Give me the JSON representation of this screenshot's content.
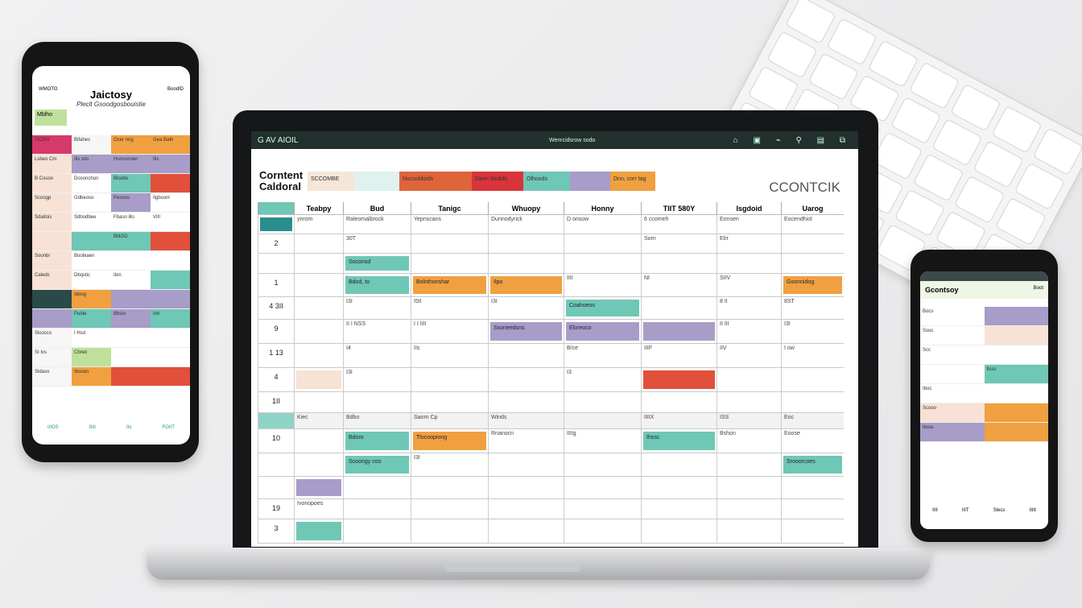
{
  "colors": {
    "teal": "#6fc7b5",
    "orange": "#f0a040",
    "red": "#e0503a",
    "purple": "#a89cc8",
    "peach": "#f7e2d5",
    "green": "#bfe09a",
    "pink": "#d63a6a",
    "grey": "#e8e8e8",
    "dark": "#22302e"
  },
  "laptop": {
    "app_title": "G AV AIOIL",
    "topbar_center": "Wenrcidsrow  sodo",
    "topbar_icons": "⌂ ▣ ⌁ ⚲ ▤ ⧉",
    "title_line1": "Corntent",
    "title_line2": "Caldoral",
    "brand": "CCONTCIK",
    "legend": [
      {
        "label": "SCCOMBE",
        "color": "#f5e6d8"
      },
      {
        "label": "",
        "color": "#dff2ef"
      },
      {
        "label": "Nocsoldoids",
        "color": "#e0643a"
      },
      {
        "label": "Dann Sedids",
        "color": "#d9343a"
      },
      {
        "label": "Olhoods",
        "color": "#6fc7b5"
      },
      {
        "label": "",
        "color": "#a89cc8"
      },
      {
        "label": "Dnn, corr tag",
        "color": "#f0a040"
      }
    ],
    "columns": [
      "",
      "Teabpy",
      "Bud",
      "Tanigc",
      "Whuopy",
      "Honny",
      "TIIT 580Y",
      "Isgdoid",
      "Uarog"
    ],
    "row_labels": [
      "",
      "2",
      "",
      "1",
      "4 3II",
      "9",
      "1 13",
      "4",
      "1II",
      "",
      "10",
      "",
      "",
      "19",
      "3"
    ],
    "cells": [
      [
        "ynrom",
        "Raleomalbrock",
        "Yepnscans",
        "Dunnodyrick",
        "D onsow",
        "6 ccomeh",
        "Eonsen",
        "Eocendhiol"
      ],
      [
        "",
        "30T",
        "",
        "",
        "",
        "Sorn",
        "Elrr",
        ""
      ],
      [
        "",
        "",
        "",
        "",
        "",
        "",
        "",
        ""
      ],
      [
        "",
        "Ii",
        "",
        "",
        "IIII",
        "NI",
        "SIIV",
        ""
      ],
      [
        "",
        "I3I",
        "I5II",
        "I3I",
        "",
        "",
        "8 II",
        "8ST"
      ],
      [
        "",
        "II I NSS",
        "I I IIII",
        "",
        "",
        "",
        "II III",
        "I3I"
      ],
      [
        "",
        "I4",
        "IIs",
        "",
        "B/ce",
        "IIIF",
        "IIV",
        "I ow"
      ],
      [
        "",
        "I3I",
        "",
        "",
        "I3",
        "",
        "",
        ""
      ],
      [
        "",
        "",
        "",
        "",
        "",
        "",
        "",
        ""
      ],
      [
        "Kiec",
        "Bdbo",
        "Saorn Cp",
        "Winds",
        "",
        "IIIIX",
        "ISS",
        "Eoc"
      ],
      [
        "",
        "",
        "",
        "Rnanocn",
        "IIIIg",
        "",
        "Bshon",
        "Eoose"
      ],
      [
        "",
        "",
        "I3I",
        "",
        "",
        "",
        "",
        ""
      ],
      [
        "",
        "",
        "",
        "",
        "",
        "",
        "",
        ""
      ],
      [
        "Ivonopoes",
        "",
        "",
        "",
        "",
        "",
        "",
        ""
      ],
      [
        "",
        "",
        "",
        "",
        "",
        "",
        "",
        ""
      ]
    ],
    "events": [
      {
        "row": 0,
        "col": 0,
        "text": "",
        "color": "#2a8f8c"
      },
      {
        "row": 2,
        "col": 2,
        "text": "Soconsd",
        "color": "#6fc7b5"
      },
      {
        "row": 3,
        "col": 2,
        "text": "Bdod, to",
        "color": "#6fc7b5"
      },
      {
        "row": 3,
        "col": 3,
        "text": "Bolnthonshar",
        "color": "#f0a040"
      },
      {
        "row": 3,
        "col": 4,
        "text": "Ilpo",
        "color": "#f0a040"
      },
      {
        "row": 3,
        "col": 8,
        "text": "Goonnidog",
        "color": "#f0a040"
      },
      {
        "row": 4,
        "col": 5,
        "text": "Coahoeos",
        "color": "#6fc7b5"
      },
      {
        "row": 5,
        "col": 4,
        "text": "Ssoneedsns",
        "color": "#a89cc8"
      },
      {
        "row": 5,
        "col": 5,
        "text": "Eloreoco",
        "color": "#a89cc8"
      },
      {
        "row": 5,
        "col": 6,
        "text": "",
        "color": "#a89cc8"
      },
      {
        "row": 7,
        "col": 6,
        "text": "",
        "color": "#e0503a"
      },
      {
        "row": 7,
        "col": 1,
        "text": "",
        "color": "#f7e2d5"
      },
      {
        "row": 10,
        "col": 2,
        "text": "Bdoro",
        "color": "#6fc7b5"
      },
      {
        "row": 10,
        "col": 3,
        "text": "Tlocoopiong",
        "color": "#f0a040"
      },
      {
        "row": 10,
        "col": 6,
        "text": "Ihssc",
        "color": "#6fc7b5"
      },
      {
        "row": 11,
        "col": 2,
        "text": "Scoongy coo",
        "color": "#6fc7b5"
      },
      {
        "row": 11,
        "col": 8,
        "text": "Srooorcoes",
        "color": "#6fc7b5"
      },
      {
        "row": 12,
        "col": 1,
        "text": "",
        "color": "#a89cc8"
      },
      {
        "row": 14,
        "col": 1,
        "text": "",
        "color": "#6fc7b5"
      }
    ]
  },
  "left_phone": {
    "status_left": "WMOTO",
    "status_right": "BoodID",
    "title": "Jaictosy",
    "subtitle": "Pleclt Gsoodgosbouistie",
    "tag": "Mblho",
    "rows": [
      [
        {
          "t": "TICIIIV",
          "c": "#d63a6a"
        },
        {
          "t": "Bifahes",
          "c": "#f6f6f6"
        },
        {
          "t": "Ocer nng",
          "c": "#f0a040"
        },
        {
          "t": "Gea Bath",
          "c": "#f0a040"
        }
      ],
      [
        {
          "t": "Lsbeo Cm",
          "c": "#f7e2d5"
        },
        {
          "t": "Ilis sds",
          "c": "#a89cc8"
        },
        {
          "t": "Honcocnen",
          "c": "#a89cc8"
        },
        {
          "t": "Ilis",
          "c": "#a89cc8"
        }
      ],
      [
        {
          "t": "B Cosoo",
          "c": "#f7e2d5"
        },
        {
          "t": "Dosonchon",
          "c": "#fff"
        },
        {
          "t": "Blodds",
          "c": "#6fc7b5"
        },
        {
          "t": "",
          "c": "#e0503a"
        }
      ],
      [
        {
          "t": "Scoogp",
          "c": "#f7e2d5"
        },
        {
          "t": "Gdbeoso",
          "c": "#fff"
        },
        {
          "t": "Pesoos",
          "c": "#a89cc8"
        },
        {
          "t": "Ilgbsonl",
          "c": "#fff"
        }
      ],
      [
        {
          "t": "Sdaitois",
          "c": "#f7e2d5"
        },
        {
          "t": "Sdbodbee",
          "c": "#fff"
        },
        {
          "t": "Fbaso illo",
          "c": "#fff"
        },
        {
          "t": "VIII",
          "c": "#fff"
        }
      ],
      [
        {
          "t": "",
          "c": "#f7e2d5"
        },
        {
          "t": "",
          "c": "#6fc7b5"
        },
        {
          "t": "Bl&SD",
          "c": "#6fc7b5"
        },
        {
          "t": "",
          "c": "#e0503a"
        }
      ],
      [
        {
          "t": "Soonbr",
          "c": "#f7e2d5"
        },
        {
          "t": "Bootkaen",
          "c": "#fff"
        },
        {
          "t": "",
          "c": "#fff"
        },
        {
          "t": "",
          "c": "#fff"
        }
      ],
      [
        {
          "t": "Caleds",
          "c": "#f7e2d5"
        },
        {
          "t": "Dbqstic",
          "c": "#fff"
        },
        {
          "t": "Ilon",
          "c": "#fff"
        },
        {
          "t": "",
          "c": "#6fc7b5"
        }
      ],
      [
        {
          "t": "",
          "c": "#2a4a48"
        },
        {
          "t": "Idoog",
          "c": "#f0a040"
        },
        {
          "t": "",
          "c": "#a89cc8"
        },
        {
          "t": "",
          "c": "#a89cc8"
        }
      ],
      [
        {
          "t": "",
          "c": "#a89cc8"
        },
        {
          "t": "Pulde",
          "c": "#6fc7b5"
        },
        {
          "t": "Bbsio",
          "c": "#a89cc8"
        },
        {
          "t": "Ioh",
          "c": "#6fc7b5"
        }
      ],
      [
        {
          "t": "Slcocco",
          "c": "#f6f6f6"
        },
        {
          "t": "I Hsd",
          "c": "#fff"
        },
        {
          "t": "",
          "c": "#fff"
        },
        {
          "t": "",
          "c": "#fff"
        }
      ],
      [
        {
          "t": "SI Ivs",
          "c": "#f6f6f6"
        },
        {
          "t": "Cbnet",
          "c": "#bfe09a"
        },
        {
          "t": "",
          "c": "#fff"
        },
        {
          "t": "",
          "c": "#fff"
        }
      ],
      [
        {
          "t": "Sldaso",
          "c": "#f6f6f6"
        },
        {
          "t": "Ibooon",
          "c": "#f0a040"
        },
        {
          "t": "",
          "c": "#e0503a"
        },
        {
          "t": "",
          "c": "#e0503a"
        }
      ]
    ],
    "footer": [
      "IIIOS",
      "IIIII",
      "IIo",
      "FOIIT"
    ]
  },
  "right_phone": {
    "title": "Gcontsoy",
    "sub": "Boot",
    "rows": [
      [
        {
          "t": "Bocs",
          "c": "#fff"
        },
        {
          "t": "",
          "c": "#a89cc8"
        }
      ],
      [
        {
          "t": "Ssoc",
          "c": "#fff"
        },
        {
          "t": "",
          "c": "#f7e2d5"
        }
      ],
      [
        {
          "t": "Scc",
          "c": "#fff"
        },
        {
          "t": "",
          "c": "#fff"
        }
      ],
      [
        {
          "t": "",
          "c": "#fff"
        },
        {
          "t": "Ilsss",
          "c": "#6fc7b5"
        }
      ],
      [
        {
          "t": "Iboc",
          "c": "#fff"
        },
        {
          "t": "",
          "c": "#fff"
        }
      ],
      [
        {
          "t": "Scooo",
          "c": "#f7e2d5"
        },
        {
          "t": "",
          "c": "#f0a040"
        }
      ],
      [
        {
          "t": "Ilooa",
          "c": "#a89cc8"
        },
        {
          "t": "",
          "c": "#f0a040"
        }
      ]
    ],
    "footer": [
      "IIII",
      "IIIT",
      "Slecs",
      "IIIIt"
    ]
  }
}
